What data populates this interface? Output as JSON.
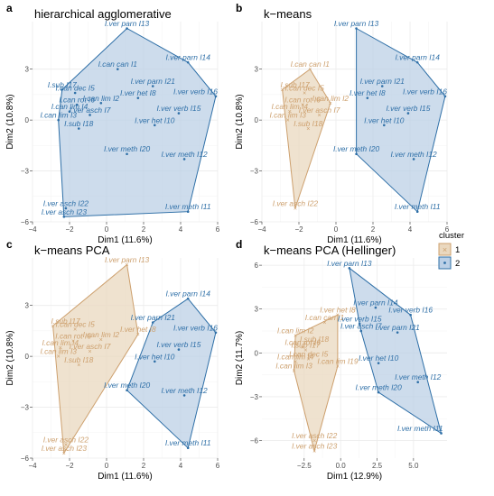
{
  "legend": {
    "title": "cluster",
    "items": [
      "1",
      "2"
    ]
  },
  "colors": {
    "c1": "#cda06e",
    "c2": "#2e6fa7",
    "c1fill": "#ead8bf",
    "c2fill": "#bcd0e6",
    "grid": "#ebebeb"
  },
  "chart_data": [
    {
      "type": "scatter",
      "tag": "a",
      "title": "hierarchical agglomerative",
      "xlabel": "Dim1 (11.6%)",
      "ylabel": "Dim2 (10.8%)",
      "xlim": [
        -4,
        6
      ],
      "ylim": [
        -6,
        5.8
      ],
      "xticks": [
        -4,
        -2,
        0,
        2,
        4,
        6
      ],
      "yticks": [
        -6,
        -3,
        0,
        3
      ],
      "points": [
        {
          "label": "I.can can I1",
          "x": 0.6,
          "y": 3.0,
          "cluster": 2
        },
        {
          "label": "I.sub I17",
          "x": -2.4,
          "y": 1.8,
          "cluster": 2
        },
        {
          "label": "I.can dec I5",
          "x": -1.7,
          "y": 1.6,
          "cluster": 2
        },
        {
          "label": "I.can lim I2",
          "x": -0.3,
          "y": 1.0,
          "cluster": 2
        },
        {
          "label": "I.can rot I6",
          "x": -1.6,
          "y": 0.9,
          "cluster": 2
        },
        {
          "label": "I.can lim I4",
          "x": -2.0,
          "y": 0.5,
          "cluster": 2
        },
        {
          "label": "I.can lim I3",
          "x": -2.6,
          "y": 0.0,
          "cluster": 2
        },
        {
          "label": "I.ver asch I7",
          "x": -0.9,
          "y": 0.3,
          "cluster": 2
        },
        {
          "label": "I.sub I18",
          "x": -1.5,
          "y": -0.5,
          "cluster": 2
        },
        {
          "label": "I.ver parn I13",
          "x": 1.1,
          "y": 5.4,
          "cluster": 2
        },
        {
          "label": "I.ver parn I14",
          "x": 4.4,
          "y": 3.4,
          "cluster": 2
        },
        {
          "label": "I.ver parn I21",
          "x": 2.5,
          "y": 2.0,
          "cluster": 2
        },
        {
          "label": "I.ver het I8",
          "x": 1.7,
          "y": 1.3,
          "cluster": 2
        },
        {
          "label": "I.ver verb I16",
          "x": 5.9,
          "y": 1.4,
          "cluster": 2
        },
        {
          "label": "I.ver verb I15",
          "x": 3.9,
          "y": 0.4,
          "cluster": 2
        },
        {
          "label": "I.ver het I10",
          "x": 2.6,
          "y": -0.3,
          "cluster": 2
        },
        {
          "label": "I.ver meth I20",
          "x": 1.1,
          "y": -2.0,
          "cluster": 2
        },
        {
          "label": "I.ver meth I12",
          "x": 4.2,
          "y": -2.3,
          "cluster": 2
        },
        {
          "label": "I.ver meth I11",
          "x": 4.4,
          "y": -5.4,
          "cluster": 2
        },
        {
          "label": "I.ver asch I22",
          "x": -2.2,
          "y": -5.2,
          "cluster": 2
        },
        {
          "label": "I.ver asch I23",
          "x": -2.3,
          "y": -5.7,
          "cluster": 2
        }
      ]
    },
    {
      "type": "scatter",
      "tag": "b",
      "title": "k−means",
      "xlabel": "Dim1 (11.6%)",
      "ylabel": "Dim2 (10.8%)",
      "xlim": [
        -4,
        6
      ],
      "ylim": [
        -6,
        5.8
      ],
      "xticks": [
        -4,
        -2,
        0,
        2,
        4,
        6
      ],
      "yticks": [
        -6,
        -3,
        0,
        3
      ],
      "points": [
        {
          "label": "I.can can I1",
          "x": -1.4,
          "y": 3.0,
          "cluster": 1
        },
        {
          "label": "I.sub I17",
          "x": -2.9,
          "y": 1.8,
          "cluster": 1
        },
        {
          "label": "I.can dec I5",
          "x": -1.7,
          "y": 1.6,
          "cluster": 1
        },
        {
          "label": "I.can lim I2",
          "x": -0.3,
          "y": 1.0,
          "cluster": 1
        },
        {
          "label": "I.can rot I6",
          "x": -1.8,
          "y": 0.9,
          "cluster": 1
        },
        {
          "label": "I.can lim I4",
          "x": -2.5,
          "y": 0.5,
          "cluster": 1
        },
        {
          "label": "I.can lim I3",
          "x": -2.6,
          "y": 0.0,
          "cluster": 1
        },
        {
          "label": "I.ver asch I7",
          "x": -0.9,
          "y": 0.3,
          "cluster": 1
        },
        {
          "label": "I.sub I18",
          "x": -1.5,
          "y": -0.5,
          "cluster": 1
        },
        {
          "label": "I.ver asch I22",
          "x": -2.2,
          "y": -5.2,
          "cluster": 1
        },
        {
          "label": "I.ver parn I13",
          "x": 1.1,
          "y": 5.4,
          "cluster": 2
        },
        {
          "label": "I.ver parn I14",
          "x": 4.4,
          "y": 3.4,
          "cluster": 2
        },
        {
          "label": "I.ver parn I21",
          "x": 2.5,
          "y": 2.0,
          "cluster": 2
        },
        {
          "label": "I.ver het I8",
          "x": 1.7,
          "y": 1.3,
          "cluster": 2
        },
        {
          "label": "I.ver verb I16",
          "x": 5.9,
          "y": 1.4,
          "cluster": 2
        },
        {
          "label": "I.ver verb I15",
          "x": 3.9,
          "y": 0.4,
          "cluster": 2
        },
        {
          "label": "I.ver het I10",
          "x": 2.6,
          "y": -0.3,
          "cluster": 2
        },
        {
          "label": "I.ver meth I20",
          "x": 1.1,
          "y": -2.0,
          "cluster": 2
        },
        {
          "label": "I.ver meth I12",
          "x": 4.2,
          "y": -2.3,
          "cluster": 2
        },
        {
          "label": "I.ver meth I11",
          "x": 4.4,
          "y": -5.4,
          "cluster": 2
        }
      ]
    },
    {
      "type": "scatter",
      "tag": "c",
      "title": "k−means PCA",
      "xlabel": "Dim1 (11.6%)",
      "ylabel": "Dim2 (10.8%)",
      "xlim": [
        -4,
        6
      ],
      "ylim": [
        -6,
        5.8
      ],
      "xticks": [
        -4,
        -2,
        0,
        2,
        4,
        6
      ],
      "yticks": [
        -6,
        -3,
        0,
        3
      ],
      "points": [
        {
          "label": "I.ver parn I13",
          "x": 1.1,
          "y": 5.4,
          "cluster": 1
        },
        {
          "label": "I.sub I17",
          "x": -2.9,
          "y": 1.8,
          "cluster": 1
        },
        {
          "label": "I.can dec I5",
          "x": -1.7,
          "y": 1.6,
          "cluster": 1
        },
        {
          "label": "I.ver het I8",
          "x": 1.7,
          "y": 1.3,
          "cluster": 1
        },
        {
          "label": "I.can lim I2",
          "x": -0.3,
          "y": 1.0,
          "cluster": 1
        },
        {
          "label": "I.can rot I6",
          "x": -1.8,
          "y": 0.9,
          "cluster": 1
        },
        {
          "label": "I.can lim I4",
          "x": -2.5,
          "y": 0.5,
          "cluster": 1
        },
        {
          "label": "I.can lim I3",
          "x": -2.6,
          "y": 0.0,
          "cluster": 1
        },
        {
          "label": "I.ver asch I7",
          "x": -0.9,
          "y": 0.3,
          "cluster": 1
        },
        {
          "label": "I.sub I18",
          "x": -1.5,
          "y": -0.5,
          "cluster": 1
        },
        {
          "label": "I.ver asch I22",
          "x": -2.2,
          "y": -5.2,
          "cluster": 1
        },
        {
          "label": "I.ver asch I23",
          "x": -2.3,
          "y": -5.7,
          "cluster": 1
        },
        {
          "label": "I.ver parn I14",
          "x": 4.4,
          "y": 3.4,
          "cluster": 2
        },
        {
          "label": "I.ver parn I21",
          "x": 2.5,
          "y": 2.0,
          "cluster": 2
        },
        {
          "label": "I.ver verb I16",
          "x": 5.9,
          "y": 1.4,
          "cluster": 2
        },
        {
          "label": "I.ver verb I15",
          "x": 3.9,
          "y": 0.4,
          "cluster": 2
        },
        {
          "label": "I.ver het I10",
          "x": 2.6,
          "y": -0.3,
          "cluster": 2
        },
        {
          "label": "I.ver meth I20",
          "x": 1.1,
          "y": -2.0,
          "cluster": 2
        },
        {
          "label": "I.ver meth I12",
          "x": 4.2,
          "y": -2.3,
          "cluster": 2
        },
        {
          "label": "I.ver meth I11",
          "x": 4.4,
          "y": -5.4,
          "cluster": 2
        }
      ]
    },
    {
      "type": "scatter",
      "tag": "d",
      "title": "k−means PCA (Hellinger)",
      "xlabel": "Dim1 (12.9%)",
      "ylabel": "Dim2 (11.7%)",
      "xlim": [
        -5.4,
        7.3
      ],
      "ylim": [
        -7.2,
        6.5
      ],
      "xticks": [
        -2.5,
        0.0,
        2.5,
        5.0
      ],
      "yticks": [
        -6,
        -3,
        0,
        3,
        6
      ],
      "points": [
        {
          "label": "I.ver het I8",
          "x": -0.2,
          "y": 2.6,
          "cluster": 1
        },
        {
          "label": "I.can can I1",
          "x": -1.1,
          "y": 2.1,
          "cluster": 1
        },
        {
          "label": "I.can lim I2",
          "x": -3.1,
          "y": 1.2,
          "cluster": 1
        },
        {
          "label": "I.sub I18",
          "x": -1.8,
          "y": 0.6,
          "cluster": 1
        },
        {
          "label": "I.can rot I6",
          "x": -2.6,
          "y": 0.4,
          "cluster": 1
        },
        {
          "label": "I.sub I17",
          "x": -2.4,
          "y": 0.2,
          "cluster": 1
        },
        {
          "label": "I.can dec I5",
          "x": -2.2,
          "y": -0.4,
          "cluster": 1
        },
        {
          "label": "I.can lim I4",
          "x": -3.1,
          "y": -0.6,
          "cluster": 1
        },
        {
          "label": "I.can lim I19",
          "x": -0.2,
          "y": -0.9,
          "cluster": 1
        },
        {
          "label": "I.can lim I3",
          "x": -3.2,
          "y": -1.2,
          "cluster": 1
        },
        {
          "label": "I.ver asch I22",
          "x": -1.8,
          "y": -6.0,
          "cluster": 1
        },
        {
          "label": "I.ver asch I23",
          "x": -1.8,
          "y": -6.7,
          "cluster": 1
        },
        {
          "label": "I.ver parn I13",
          "x": 0.6,
          "y": 5.8,
          "cluster": 2
        },
        {
          "label": "I.ver parn I14",
          "x": 2.4,
          "y": 3.1,
          "cluster": 2
        },
        {
          "label": "I.ver verb I16",
          "x": 4.8,
          "y": 2.6,
          "cluster": 2
        },
        {
          "label": "I.ver verb I15",
          "x": 1.3,
          "y": 2.0,
          "cluster": 2
        },
        {
          "label": "I.ver asch I7",
          "x": 1.4,
          "y": 1.5,
          "cluster": 2
        },
        {
          "label": "I.ver parn I21",
          "x": 3.9,
          "y": 1.4,
          "cluster": 2
        },
        {
          "label": "I.ver het I10",
          "x": 2.6,
          "y": -0.7,
          "cluster": 2
        },
        {
          "label": "I.ver meth I20",
          "x": 2.6,
          "y": -2.7,
          "cluster": 2
        },
        {
          "label": "I.ver meth I12",
          "x": 5.3,
          "y": -2.0,
          "cluster": 2
        },
        {
          "label": "I.ver meth I11",
          "x": 6.9,
          "y": -5.5,
          "cluster": 2
        }
      ]
    }
  ]
}
